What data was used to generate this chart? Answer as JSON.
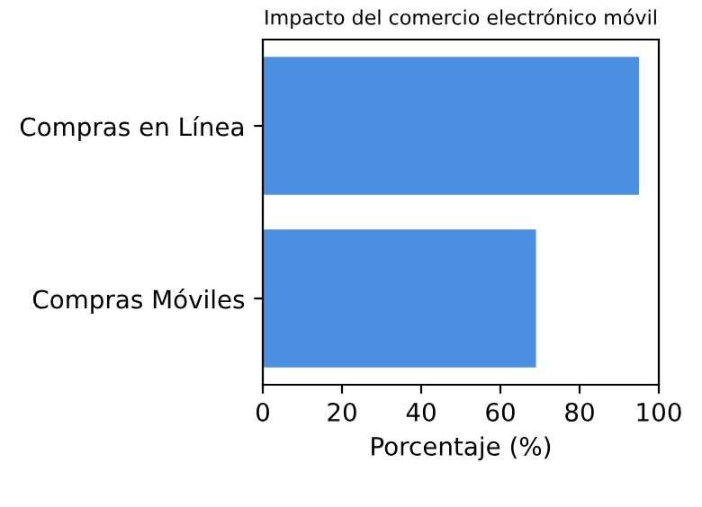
{
  "chart_data": {
    "type": "bar",
    "orientation": "horizontal",
    "title": "Impacto del comercio electrónico móvil",
    "xlabel": "Porcentaje (%)",
    "categories": [
      "Compras en Línea",
      "Compras Móviles"
    ],
    "values": [
      95,
      69
    ],
    "color": "#4a90e2",
    "xlim": [
      0,
      100
    ],
    "xticks": [
      0,
      20,
      40,
      60,
      80,
      100
    ],
    "grid": false
  }
}
